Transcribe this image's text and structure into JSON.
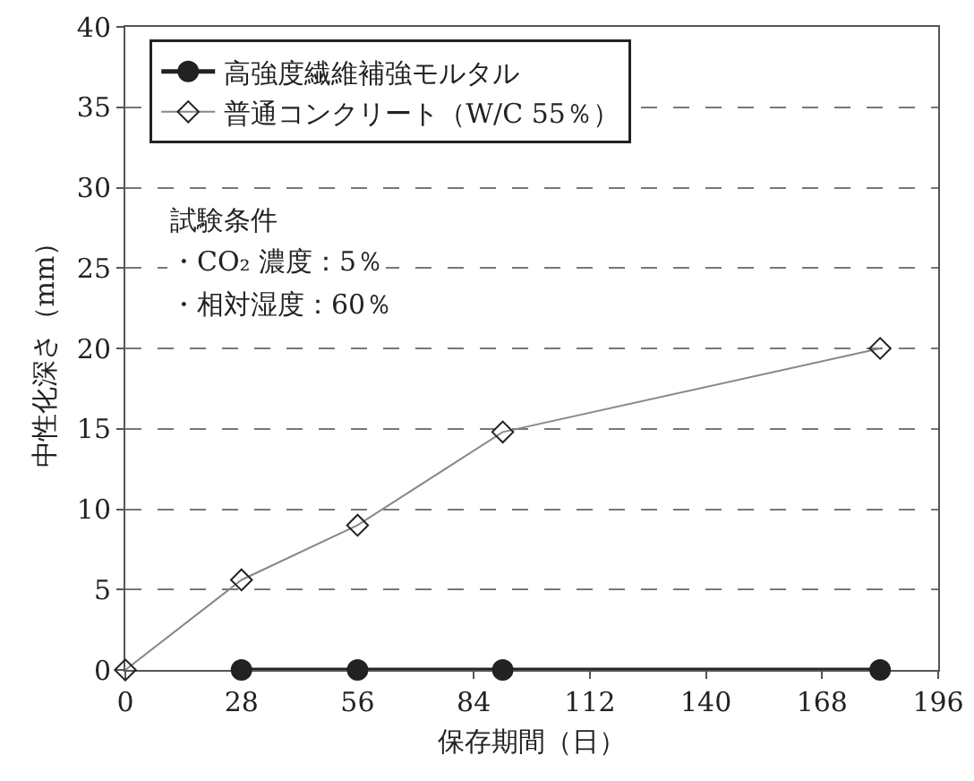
{
  "chart_data": {
    "type": "line",
    "xlabel": "保存期間（日）",
    "ylabel": "中性化深さ（mm）",
    "x": [
      0,
      28,
      56,
      91,
      182
    ],
    "series": [
      {
        "name": "高強度繊維補強モルタル",
        "color": "#222222",
        "values": [
          null,
          0,
          0,
          0,
          0
        ],
        "marker": "circle"
      },
      {
        "name": "普通コンクリート（W/C 55％）",
        "color": "#888888",
        "values": [
          0,
          5.6,
          9.0,
          14.8,
          20.0
        ],
        "marker": "diamond"
      }
    ],
    "xlim": [
      0,
      196
    ],
    "xticks": [
      0,
      28,
      56,
      84,
      112,
      140,
      168,
      196
    ],
    "ylim": [
      0,
      40
    ],
    "yticks": [
      0,
      5,
      10,
      15,
      20,
      25,
      30,
      35,
      40
    ],
    "grid": "y",
    "legend": "top left",
    "line_style": "solid",
    "annotations": [
      "試験条件",
      "・CO₂ 濃度：5％",
      "・相対湿度：60％"
    ]
  }
}
